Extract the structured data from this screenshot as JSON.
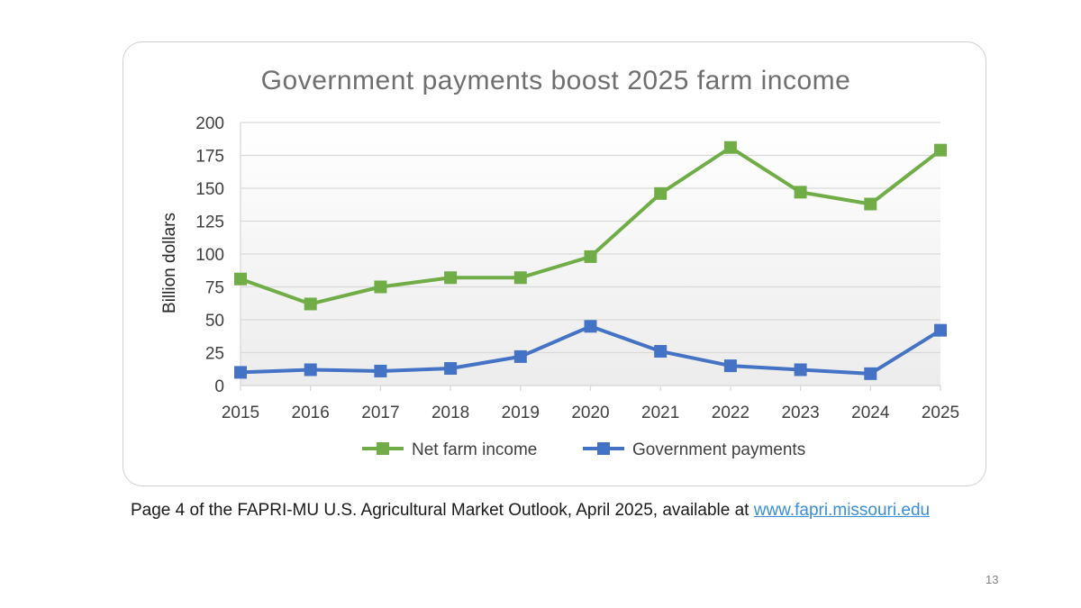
{
  "slide": {
    "caption_text": "Page 4 of the FAPRI-MU U.S. Agricultural Market Outlook, April 2025, available at",
    "caption_link": "www.fapri.missouri.edu",
    "page_number": "13"
  },
  "colors": {
    "net_farm_income": "#70ad47",
    "government_payments": "#4472c4",
    "grid": "#d9d9d9",
    "link": "#3a8fd6"
  },
  "chart_data": {
    "type": "line",
    "title": "Government payments boost 2025 farm income",
    "xlabel": "",
    "ylabel": "Billion dollars",
    "ylim": [
      0,
      200
    ],
    "yticks": [
      0,
      25,
      50,
      75,
      100,
      125,
      150,
      175,
      200
    ],
    "categories": [
      "2015",
      "2016",
      "2017",
      "2018",
      "2019",
      "2020",
      "2021",
      "2022",
      "2023",
      "2024",
      "2025"
    ],
    "grid": true,
    "legend_position": "bottom",
    "series": [
      {
        "name": "Net farm income",
        "color": "#70ad47",
        "values": [
          81,
          62,
          75,
          82,
          82,
          98,
          146,
          181,
          147,
          138,
          179
        ]
      },
      {
        "name": "Government payments",
        "color": "#4472c4",
        "values": [
          10,
          12,
          11,
          13,
          22,
          45,
          26,
          15,
          12,
          9,
          42
        ]
      }
    ]
  }
}
